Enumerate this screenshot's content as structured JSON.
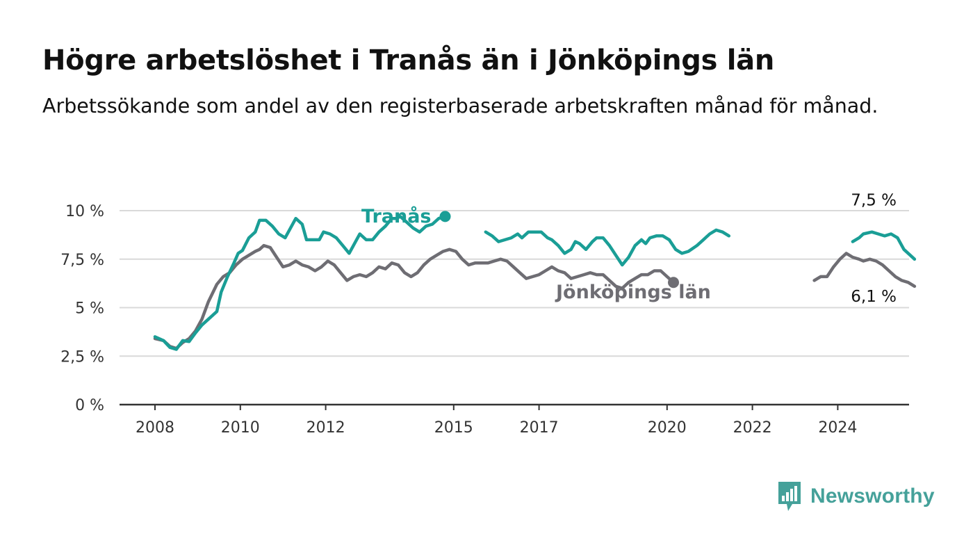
{
  "title": "Högre arbetslöshet i Tranås än i Jönköpings län",
  "subtitle": "Arbetssökande som andel av den registerbaserade arbetskraften månad för månad.",
  "brand": {
    "name": "Newsworthy",
    "color": "#45a19a",
    "icon": "newsworthy-logo-icon"
  },
  "colors": {
    "Tranås": "#1a9e96",
    "Jönköpings län": "#6e6d73",
    "grid": "#d9d9d9",
    "axis": "#333333"
  },
  "chart_data": {
    "type": "line",
    "title": "Högre arbetslöshet i Tranås än i Jönköpings län",
    "subtitle": "Arbetssökande som andel av den registerbaserade arbetskraften månad för månad.",
    "xlabel": "",
    "ylabel": "",
    "xlim": [
      2008,
      2025.8
    ],
    "ylim": [
      0,
      10
    ],
    "y_ticks": [
      0,
      2.5,
      5,
      7.5,
      10
    ],
    "y_tick_labels": [
      "0 %",
      "2,5 %",
      "5 %",
      "7,5 %",
      "10 %"
    ],
    "x_ticks": [
      2008,
      2010,
      2012,
      2015,
      2017,
      2020,
      2022,
      2024
    ],
    "x_tick_labels": [
      "2008",
      "2010",
      "2012",
      "2015",
      "2017",
      "2020",
      "2022",
      "2024"
    ],
    "grid": "horizontal",
    "series": [
      {
        "name": "Tranås",
        "color": "#1a9e96",
        "end_label": "7,5 %",
        "points": [
          [
            2008.0,
            3.5
          ],
          [
            2008.2,
            3.3
          ],
          [
            2008.35,
            2.95
          ],
          [
            2008.5,
            2.85
          ],
          [
            2008.65,
            3.3
          ],
          [
            2008.8,
            3.25
          ],
          [
            2008.95,
            3.7
          ],
          [
            2009.1,
            4.1
          ],
          [
            2009.3,
            4.5
          ],
          [
            2009.45,
            4.8
          ],
          [
            2009.55,
            5.8
          ],
          [
            2009.7,
            6.6
          ],
          [
            2009.85,
            7.3
          ],
          [
            2009.95,
            7.8
          ],
          [
            2010.05,
            7.95
          ],
          [
            2010.2,
            8.6
          ],
          [
            2010.35,
            8.9
          ],
          [
            2010.45,
            9.5
          ],
          [
            2010.6,
            9.5
          ],
          [
            2010.75,
            9.2
          ],
          [
            2010.9,
            8.8
          ],
          [
            2011.05,
            8.6
          ],
          [
            2011.15,
            9.0
          ],
          [
            2011.3,
            9.6
          ],
          [
            2011.45,
            9.3
          ],
          [
            2011.55,
            8.5
          ],
          [
            2011.7,
            8.5
          ],
          [
            2011.85,
            8.5
          ],
          [
            2011.95,
            8.9
          ],
          [
            2012.1,
            8.8
          ],
          [
            2012.25,
            8.6
          ],
          [
            2012.4,
            8.2
          ],
          [
            2012.55,
            7.8
          ],
          [
            2012.7,
            8.4
          ],
          [
            2012.8,
            8.8
          ],
          [
            2012.95,
            8.5
          ],
          [
            2013.1,
            8.5
          ],
          [
            2013.25,
            8.9
          ],
          [
            2013.4,
            9.2
          ],
          [
            2013.55,
            9.6
          ],
          [
            2013.65,
            9.6
          ],
          [
            2013.75,
            9.7
          ],
          [
            2013.9,
            9.4
          ],
          [
            2014.05,
            9.1
          ],
          [
            2014.2,
            8.9
          ],
          [
            2014.35,
            9.2
          ],
          [
            2014.5,
            9.3
          ],
          [
            2014.65,
            9.6
          ],
          [
            2014.8,
            9.7
          ]
        ]
      },
      {
        "name": "Tranås",
        "color": "#1a9e96",
        "points": [
          [
            2015.75,
            8.9
          ],
          [
            2015.9,
            8.7
          ],
          [
            2016.05,
            8.4
          ],
          [
            2016.2,
            8.5
          ],
          [
            2016.35,
            8.6
          ],
          [
            2016.5,
            8.8
          ],
          [
            2016.6,
            8.6
          ],
          [
            2016.75,
            8.9
          ],
          [
            2016.9,
            8.9
          ],
          [
            2017.05,
            8.9
          ],
          [
            2017.2,
            8.6
          ],
          [
            2017.3,
            8.5
          ],
          [
            2017.45,
            8.2
          ],
          [
            2017.6,
            7.8
          ],
          [
            2017.75,
            8.0
          ],
          [
            2017.85,
            8.4
          ],
          [
            2017.95,
            8.3
          ],
          [
            2018.1,
            8.0
          ],
          [
            2018.25,
            8.4
          ],
          [
            2018.35,
            8.6
          ],
          [
            2018.5,
            8.6
          ],
          [
            2018.65,
            8.2
          ],
          [
            2018.8,
            7.7
          ],
          [
            2018.95,
            7.2
          ],
          [
            2019.1,
            7.6
          ],
          [
            2019.25,
            8.2
          ],
          [
            2019.4,
            8.5
          ],
          [
            2019.5,
            8.3
          ],
          [
            2019.6,
            8.6
          ],
          [
            2019.75,
            8.7
          ],
          [
            2019.9,
            8.7
          ],
          [
            2020.05,
            8.5
          ],
          [
            2020.2,
            8.0
          ],
          [
            2020.35,
            7.8
          ],
          [
            2020.5,
            7.9
          ],
          [
            2020.7,
            8.2
          ],
          [
            2020.85,
            8.5
          ],
          [
            2021.0,
            8.8
          ],
          [
            2021.15,
            9.0
          ],
          [
            2021.3,
            8.9
          ],
          [
            2021.45,
            8.7
          ]
        ]
      },
      {
        "name": "Tranås",
        "color": "#1a9e96",
        "points": [
          [
            2024.35,
            8.4
          ],
          [
            2024.5,
            8.6
          ],
          [
            2024.6,
            8.8
          ],
          [
            2024.8,
            8.9
          ],
          [
            2024.95,
            8.8
          ],
          [
            2025.1,
            8.7
          ],
          [
            2025.25,
            8.8
          ],
          [
            2025.4,
            8.6
          ],
          [
            2025.55,
            8.0
          ],
          [
            2025.7,
            7.7
          ],
          [
            2025.8,
            7.5
          ]
        ]
      },
      {
        "name": "Jönköpings län",
        "color": "#6e6d73",
        "end_label": "6,1 %",
        "points": [
          [
            2008.0,
            3.4
          ],
          [
            2008.2,
            3.3
          ],
          [
            2008.35,
            3.0
          ],
          [
            2008.5,
            2.9
          ],
          [
            2008.65,
            3.2
          ],
          [
            2008.8,
            3.4
          ],
          [
            2008.95,
            3.8
          ],
          [
            2009.1,
            4.4
          ],
          [
            2009.25,
            5.3
          ],
          [
            2009.45,
            6.2
          ],
          [
            2009.6,
            6.6
          ],
          [
            2009.75,
            6.8
          ],
          [
            2009.9,
            7.2
          ],
          [
            2010.05,
            7.5
          ],
          [
            2010.2,
            7.7
          ],
          [
            2010.35,
            7.9
          ],
          [
            2010.45,
            8.0
          ],
          [
            2010.55,
            8.2
          ],
          [
            2010.7,
            8.1
          ],
          [
            2010.85,
            7.6
          ],
          [
            2011.0,
            7.1
          ],
          [
            2011.15,
            7.2
          ],
          [
            2011.3,
            7.4
          ],
          [
            2011.45,
            7.2
          ],
          [
            2011.6,
            7.1
          ],
          [
            2011.75,
            6.9
          ],
          [
            2011.9,
            7.1
          ],
          [
            2012.05,
            7.4
          ],
          [
            2012.2,
            7.2
          ],
          [
            2012.35,
            6.8
          ],
          [
            2012.5,
            6.4
          ],
          [
            2012.65,
            6.6
          ],
          [
            2012.8,
            6.7
          ],
          [
            2012.95,
            6.6
          ],
          [
            2013.1,
            6.8
          ],
          [
            2013.25,
            7.1
          ],
          [
            2013.4,
            7.0
          ],
          [
            2013.55,
            7.3
          ],
          [
            2013.7,
            7.2
          ],
          [
            2013.85,
            6.8
          ],
          [
            2014.0,
            6.6
          ],
          [
            2014.15,
            6.8
          ],
          [
            2014.3,
            7.2
          ],
          [
            2014.45,
            7.5
          ],
          [
            2014.6,
            7.7
          ],
          [
            2014.75,
            7.9
          ],
          [
            2014.9,
            8.0
          ],
          [
            2015.05,
            7.9
          ],
          [
            2015.2,
            7.5
          ],
          [
            2015.35,
            7.2
          ],
          [
            2015.5,
            7.3
          ],
          [
            2015.65,
            7.3
          ],
          [
            2015.8,
            7.3
          ],
          [
            2015.95,
            7.4
          ],
          [
            2016.1,
            7.5
          ],
          [
            2016.25,
            7.4
          ],
          [
            2016.4,
            7.1
          ],
          [
            2016.55,
            6.8
          ],
          [
            2016.7,
            6.5
          ],
          [
            2016.85,
            6.6
          ],
          [
            2017.0,
            6.7
          ],
          [
            2017.15,
            6.9
          ],
          [
            2017.3,
            7.1
          ],
          [
            2017.45,
            6.9
          ],
          [
            2017.6,
            6.8
          ],
          [
            2017.75,
            6.5
          ],
          [
            2017.9,
            6.6
          ],
          [
            2018.05,
            6.7
          ],
          [
            2018.2,
            6.8
          ],
          [
            2018.35,
            6.7
          ],
          [
            2018.5,
            6.7
          ],
          [
            2018.65,
            6.4
          ],
          [
            2018.8,
            6.1
          ],
          [
            2018.95,
            6.0
          ],
          [
            2019.1,
            6.3
          ],
          [
            2019.25,
            6.5
          ],
          [
            2019.4,
            6.7
          ],
          [
            2019.55,
            6.7
          ],
          [
            2019.7,
            6.9
          ],
          [
            2019.85,
            6.9
          ],
          [
            2020.0,
            6.6
          ],
          [
            2020.15,
            6.3
          ]
        ]
      },
      {
        "name": "Jönköpings län",
        "color": "#6e6d73",
        "points": [
          [
            2023.45,
            6.4
          ],
          [
            2023.6,
            6.6
          ],
          [
            2023.75,
            6.6
          ],
          [
            2023.9,
            7.1
          ],
          [
            2024.05,
            7.5
          ],
          [
            2024.2,
            7.8
          ],
          [
            2024.35,
            7.6
          ],
          [
            2024.5,
            7.5
          ],
          [
            2024.6,
            7.4
          ],
          [
            2024.75,
            7.5
          ],
          [
            2024.9,
            7.4
          ],
          [
            2025.05,
            7.2
          ],
          [
            2025.2,
            6.9
          ],
          [
            2025.35,
            6.6
          ],
          [
            2025.5,
            6.4
          ],
          [
            2025.65,
            6.3
          ],
          [
            2025.8,
            6.1
          ]
        ]
      }
    ]
  }
}
